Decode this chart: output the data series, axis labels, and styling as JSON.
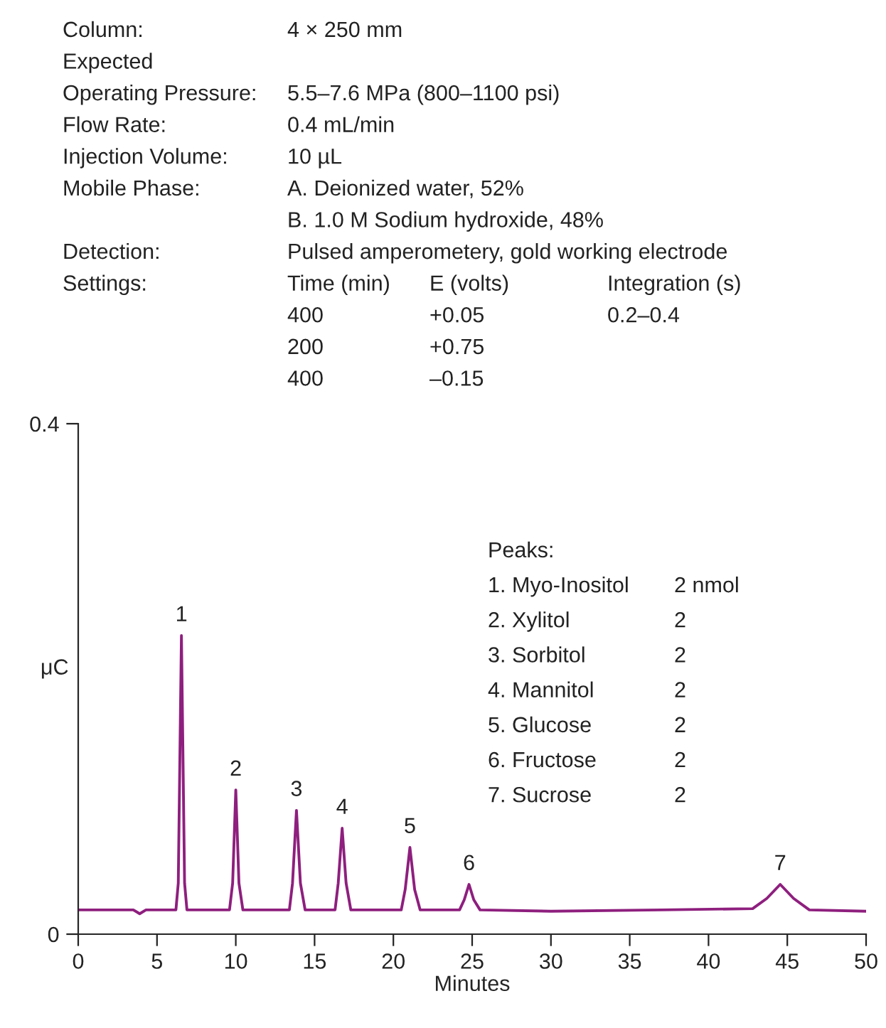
{
  "chart_data": {
    "type": "line",
    "xlabel": "Minutes",
    "ylabel": "μC",
    "xlim": [
      0,
      50
    ],
    "xticks": [
      0,
      5,
      10,
      15,
      20,
      25,
      30,
      35,
      40,
      45,
      50
    ],
    "ylim": [
      0,
      0.4
    ],
    "yticks": [
      0,
      0.4
    ],
    "grid": false,
    "legend": false,
    "marker": "none",
    "line_style": "solid",
    "series": [
      {
        "color": "#8e1f7e",
        "x": [
          0,
          3.5,
          3.9,
          4.3,
          6.2,
          6.35,
          6.55,
          6.75,
          6.9,
          9.6,
          9.8,
          10.0,
          10.2,
          10.45,
          13.4,
          13.6,
          13.85,
          14.1,
          14.4,
          16.3,
          16.5,
          16.75,
          17.0,
          17.3,
          20.5,
          20.75,
          21.05,
          21.35,
          21.7,
          24.2,
          24.5,
          24.8,
          25.1,
          25.5,
          30,
          37,
          42.8,
          43.7,
          44.55,
          45.4,
          46.4,
          50
        ],
        "values": [
          0.019,
          0.019,
          0.016,
          0.019,
          0.019,
          0.04,
          0.234,
          0.04,
          0.019,
          0.019,
          0.04,
          0.113,
          0.04,
          0.019,
          0.019,
          0.04,
          0.097,
          0.04,
          0.019,
          0.019,
          0.04,
          0.083,
          0.04,
          0.019,
          0.019,
          0.035,
          0.068,
          0.035,
          0.019,
          0.019,
          0.027,
          0.039,
          0.027,
          0.019,
          0.018,
          0.019,
          0.02,
          0.028,
          0.039,
          0.028,
          0.019,
          0.018
        ]
      }
    ],
    "annotations": [
      "Column:\t4 × 250 mm",
      "Expected",
      "Operating Pressure:\t5.5–7.6 MPa (800–1100 psi)",
      "Flow Rate:\t0.4 mL/min",
      "Injection Volume:\t10 µL",
      "Mobile Phase:\tA. Deionized water, 52%",
      "\tB. 1.0 M Sodium hydroxide, 48%",
      "Detection:\tPulsed amperometery, gold working electrode",
      "Settings:\tTime (min)\tE (volts)\tIntegration (s)",
      "\t400\t+0.05\t0.2–0.4",
      "\t200\t+0.75",
      "\t400\t–0.15",
      "Peaks:",
      "1.\tMyo-Inositol\t2 nmol",
      "2.\tXylitol\t2",
      "3.\tSorbitol\t2",
      "4.\tMannitol\t2",
      "5.\tGlucose\t2",
      "6.\tFructose\t2",
      "7.\tSucrose\t2",
      {
        "text": "1",
        "x": 6.55,
        "y": 0.234
      },
      {
        "text": "2",
        "x": 10.0,
        "y": 0.113
      },
      {
        "text": "3",
        "x": 13.85,
        "y": 0.097
      },
      {
        "text": "4",
        "x": 16.75,
        "y": 0.083
      },
      {
        "text": "5",
        "x": 21.05,
        "y": 0.068
      },
      {
        "text": "6",
        "x": 24.8,
        "y": 0.039
      },
      {
        "text": "7",
        "x": 44.55,
        "y": 0.039
      }
    ]
  }
}
